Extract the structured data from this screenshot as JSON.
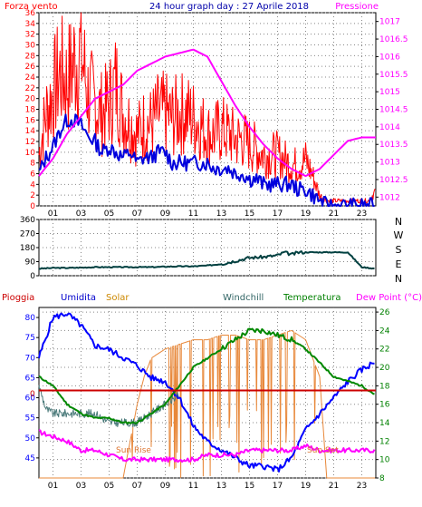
{
  "header": {
    "left_title": "Forza vento",
    "center_title": "24 hour graph day : 27 Aprile 2018",
    "right_title": "Pressione"
  },
  "colors": {
    "wind": "#ff0000",
    "gust_avg": "#0000dd",
    "pressure": "#ff00ff",
    "direction": "#004040",
    "humidity": "#0000ff",
    "solar": "#e8883a",
    "windchill": "#4a7a7a",
    "temperature": "#008800",
    "dewpoint": "#ff00ff",
    "rain": "#cc0000",
    "frame": "#000000",
    "grid": "#888888",
    "left_axis_top": "#ff0000",
    "right_axis_top": "#ff00ff",
    "left_axis_bottom": "#0000ff",
    "right_axis_bottom": "#008000"
  },
  "direction_labels": [
    "N",
    "W",
    "S",
    "E",
    "N"
  ],
  "bottom_header": {
    "pioggia": "Pioggia",
    "umidita": "Umidita",
    "solar": "Solar",
    "windchill": "Windchill",
    "temperatura": "Temperatura",
    "dewpoint": "Dew Point (°C)"
  },
  "annotations": {
    "sunrise": "Sun Rise",
    "sunset": "Sun Set"
  },
  "chart_data": [
    {
      "type": "line",
      "panel": "wind_pressure",
      "title": "24 hour graph day : 27 Aprile 2018",
      "x_ticks": [
        "01",
        "03",
        "05",
        "07",
        "09",
        "11",
        "13",
        "15",
        "17",
        "19",
        "21",
        "23"
      ],
      "xlim": [
        0,
        24
      ],
      "ylabel_left": "Forza vento",
      "ylim_left": [
        0,
        36
      ],
      "y_ticks_left": [
        "0",
        "2",
        "4",
        "6",
        "8",
        "10",
        "12",
        "14",
        "16",
        "18",
        "20",
        "22",
        "24",
        "26",
        "28",
        "30",
        "32",
        "34",
        "36"
      ],
      "ylabel_right": "Pressione",
      "ylim_right": [
        1011.75,
        1017.25
      ],
      "y_ticks_right": [
        "1012",
        "1012.5",
        "1013",
        "1013.5",
        "1014",
        "1014.5",
        "1015",
        "1015.5",
        "1016",
        "1016.5",
        "1017"
      ],
      "series": [
        {
          "name": "Forza vento",
          "axis": "left",
          "x": [
            0,
            0.5,
            1,
            1.5,
            2,
            2.5,
            3,
            3.5,
            4,
            4.5,
            5,
            5.5,
            6,
            6.5,
            7,
            7.5,
            8,
            8.5,
            9,
            9.5,
            10,
            10.5,
            11,
            11.5,
            12,
            12.5,
            13,
            13.5,
            14,
            14.5,
            15,
            15.5,
            16,
            16.5,
            17,
            17.5,
            18,
            18.5,
            19,
            19.5,
            20,
            20.5,
            21,
            21.5,
            22,
            22.5,
            23,
            23.5,
            24
          ],
          "values": [
            10,
            18,
            22,
            26,
            24,
            28,
            30,
            22,
            20,
            18,
            20,
            24,
            18,
            16,
            14,
            16,
            16,
            18,
            18,
            17,
            18,
            18,
            17,
            16,
            14,
            14,
            15,
            14,
            13,
            13,
            12,
            11,
            10,
            10,
            10,
            9,
            8,
            8,
            9,
            6,
            2,
            1,
            1,
            1,
            1,
            1,
            1,
            1,
            3
          ]
        },
        {
          "name": "Media",
          "axis": "left",
          "x": [
            0,
            0.5,
            1,
            1.5,
            2,
            2.5,
            3,
            3.5,
            4,
            4.5,
            5,
            5.5,
            6,
            6.5,
            7,
            7.5,
            8,
            8.5,
            9,
            9.5,
            10,
            10.5,
            11,
            11.5,
            12,
            12.5,
            13,
            13.5,
            14,
            14.5,
            15,
            15.5,
            16,
            16.5,
            17,
            17.5,
            18,
            18.5,
            19,
            19.5,
            20,
            20.5,
            21,
            21.5,
            22,
            22.5,
            23,
            23.5,
            24
          ],
          "values": [
            6,
            9,
            11,
            14,
            16,
            16,
            15,
            13,
            12,
            10,
            11,
            10,
            9,
            10,
            8,
            9,
            9,
            10,
            10,
            8,
            8,
            8,
            8,
            8,
            8,
            7,
            7,
            7,
            6,
            6,
            5,
            5,
            4,
            4,
            4,
            4,
            4,
            3,
            3,
            2,
            1,
            0,
            0,
            0,
            0,
            0,
            0,
            0,
            0
          ]
        },
        {
          "name": "Pressione",
          "axis": "right",
          "x": [
            0,
            1,
            2,
            3,
            4,
            5,
            6,
            7,
            8,
            9,
            10,
            11,
            12,
            13,
            14,
            15,
            16,
            17,
            18,
            19,
            20,
            21,
            22,
            23,
            24
          ],
          "values": [
            1012.6,
            1013.1,
            1013.8,
            1014.3,
            1014.8,
            1015.0,
            1015.2,
            1015.6,
            1015.8,
            1016.0,
            1016.1,
            1016.2,
            1016.0,
            1015.3,
            1014.6,
            1014.0,
            1013.5,
            1013.1,
            1012.8,
            1012.6,
            1012.8,
            1013.2,
            1013.6,
            1013.7,
            1013.7
          ]
        }
      ]
    },
    {
      "type": "line",
      "panel": "wind_direction",
      "x_ticks": [
        "01",
        "03",
        "05",
        "07",
        "09",
        "11",
        "13",
        "15",
        "17",
        "19",
        "21",
        "23"
      ],
      "xlim": [
        0,
        24
      ],
      "ylim": [
        0,
        360
      ],
      "y_ticks": [
        "0",
        "90",
        "180",
        "270",
        "360"
      ],
      "series": [
        {
          "name": "Direzione vento",
          "x": [
            0,
            1,
            2,
            3,
            4,
            5,
            6,
            7,
            8,
            9,
            10,
            11,
            12,
            13,
            14,
            15,
            16,
            17,
            17.5,
            18,
            18.5,
            19,
            20,
            21,
            22,
            23,
            24
          ],
          "values": [
            45,
            50,
            50,
            52,
            55,
            55,
            55,
            55,
            55,
            58,
            60,
            60,
            65,
            75,
            95,
            115,
            120,
            130,
            150,
            135,
            150,
            150,
            150,
            150,
            150,
            55,
            45
          ]
        }
      ]
    },
    {
      "type": "line",
      "panel": "temperature_humidity",
      "x_ticks": [
        "01",
        "03",
        "05",
        "07",
        "09",
        "11",
        "13",
        "15",
        "17",
        "19",
        "21",
        "23"
      ],
      "xlim": [
        0,
        24
      ],
      "ylim_left": [
        40,
        82.5
      ],
      "y_ticks_left": [
        "45",
        "50",
        "55",
        "60",
        "65",
        "70",
        "75",
        "80"
      ],
      "ylim_right": [
        8,
        26.5
      ],
      "y_ticks_right": [
        "8",
        "10",
        "12",
        "14",
        "16",
        "18",
        "20",
        "22",
        "24",
        "26"
      ],
      "series": [
        {
          "name": "Umidita",
          "axis": "left",
          "x": [
            0,
            1,
            2,
            3,
            4,
            5,
            6,
            7,
            8,
            9,
            10,
            11,
            12,
            13,
            14,
            15,
            16,
            17,
            18,
            19,
            20,
            21,
            22,
            23,
            24
          ],
          "values": [
            70,
            80,
            81,
            78,
            73,
            72,
            70,
            68,
            65,
            64,
            60,
            53,
            49,
            47,
            45,
            43,
            43,
            42,
            45,
            52,
            56,
            60,
            64,
            67,
            69
          ]
        },
        {
          "name": "Windchill",
          "axis": "right",
          "x": [
            0,
            0.5,
            1,
            2,
            3,
            4,
            5,
            6,
            7,
            8,
            9,
            10
          ],
          "values": [
            18,
            15.5,
            15,
            15,
            15,
            15,
            14,
            14,
            14,
            15,
            16,
            17
          ]
        },
        {
          "name": "Temperatura",
          "axis": "right",
          "x": [
            0,
            1,
            2,
            3,
            4,
            5,
            6,
            7,
            8,
            9,
            10,
            11,
            12,
            13,
            14,
            15,
            16,
            17,
            18,
            19,
            20,
            21,
            22,
            23,
            24
          ],
          "values": [
            19,
            18,
            16,
            15,
            14.5,
            14.5,
            14,
            14,
            15,
            16,
            18,
            20,
            21,
            22,
            23,
            24,
            24,
            23.5,
            23,
            22,
            20.5,
            19,
            18.5,
            18,
            17
          ]
        },
        {
          "name": "Dew Point",
          "axis": "right",
          "x": [
            0,
            1,
            2,
            3,
            4,
            5,
            6,
            7,
            8,
            9,
            10,
            11,
            12,
            13,
            14,
            15,
            16,
            17,
            18,
            19,
            20,
            21,
            22,
            23,
            24
          ],
          "values": [
            13,
            12.5,
            12,
            11,
            11,
            10.5,
            10,
            10,
            10,
            10,
            10,
            10,
            10.5,
            10.5,
            10.5,
            11,
            11,
            11,
            11,
            11.5,
            11,
            11,
            11,
            11,
            11
          ]
        },
        {
          "name": "Solar",
          "axis": "right",
          "x": [
            0,
            6,
            6.5,
            7,
            7.5,
            8,
            8.5,
            9,
            10,
            11,
            12,
            13,
            14,
            15,
            16,
            17,
            18,
            19,
            19.5,
            20,
            20.5,
            21,
            24
          ],
          "values": [
            8,
            8,
            12,
            16,
            19,
            21,
            21.5,
            22,
            22.5,
            23,
            23,
            23.5,
            23.5,
            23,
            23,
            23.5,
            24,
            23,
            21,
            19,
            8,
            8,
            8
          ]
        },
        {
          "name": "Pioggia",
          "axis": "right",
          "x": [
            0,
            24
          ],
          "values": [
            17.5,
            17.5
          ]
        }
      ]
    }
  ]
}
